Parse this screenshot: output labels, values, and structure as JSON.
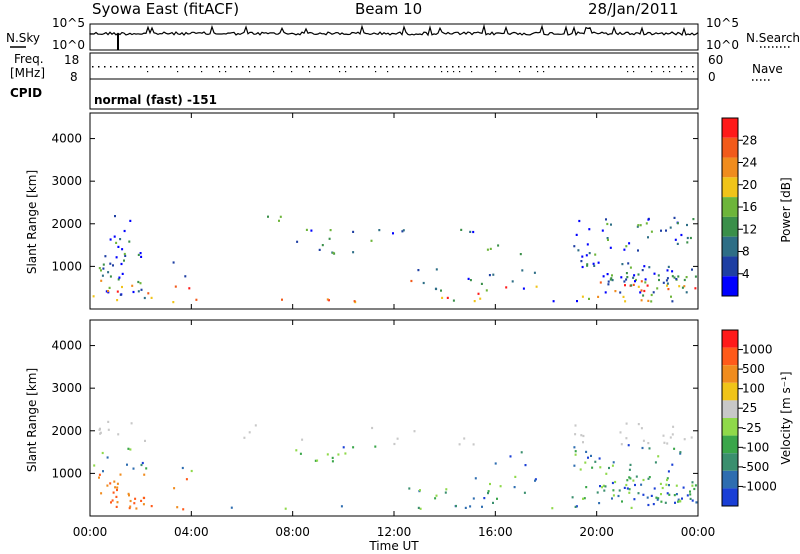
{
  "header": {
    "station": "Syowa East (fitACF)",
    "beam": "Beam 10",
    "date": "28/Jan/2011"
  },
  "noise_panel": {
    "left_label": "N.Sky",
    "right_label": "N.Search",
    "tick_top": "10^5",
    "tick_bottom": "10^0"
  },
  "freq_panel": {
    "left_label_line1": "Freq.",
    "left_label_line2": "[MHz]",
    "right_label": "Nave",
    "left_ticks": [
      "18",
      "8"
    ],
    "right_ticks": [
      "60",
      "0"
    ]
  },
  "cpid_panel": {
    "label": "CPID",
    "mode_text": "normal (fast) -151"
  },
  "power_panel": {
    "ylabel": "Slant Range [km]",
    "yticks": [
      "4000",
      "3000",
      "2000",
      "1000"
    ],
    "colorbar_label": "Power [dB]",
    "colorbar_ticks": [
      "28",
      "24",
      "20",
      "16",
      "12",
      "8",
      "4"
    ],
    "colors": [
      "#0000ff",
      "#1e3fa3",
      "#2e6e86",
      "#3a8f4a",
      "#6db53a",
      "#f0c419",
      "#f08c1e",
      "#f25a1a",
      "#ff1a1a"
    ]
  },
  "velocity_panel": {
    "ylabel": "Slant Range [km]",
    "yticks": [
      "4000",
      "3000",
      "2000",
      "1000"
    ],
    "colorbar_label": "Velocity [m s⁻¹]",
    "colorbar_ticks": [
      "1000",
      "500",
      "100",
      "25",
      "-25",
      "-100",
      "-500",
      "-1000"
    ],
    "colors": [
      "#1a3fd6",
      "#2e6db0",
      "#3a8f6e",
      "#3aa64a",
      "#8fd94a",
      "#c8c8c8",
      "#f0c419",
      "#f08c1e",
      "#ff5a1a",
      "#ff1a1a"
    ]
  },
  "xaxis": {
    "label": "Time UT",
    "ticks": [
      "00:00",
      "04:00",
      "08:00",
      "12:00",
      "16:00",
      "20:00",
      "00:00"
    ]
  }
}
